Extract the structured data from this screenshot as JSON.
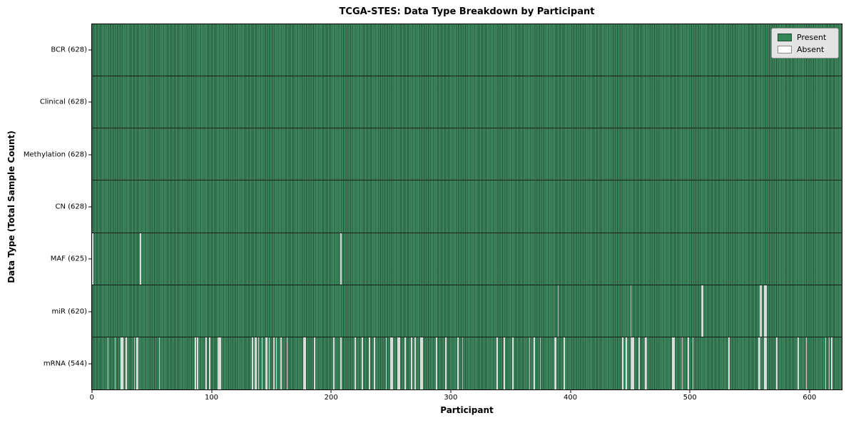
{
  "chart_data": {
    "type": "heatmap",
    "title": "TCGA-STES: Data Type Breakdown by Participant",
    "xlabel": "Participant",
    "ylabel": "Data Type (Total Sample Count)",
    "x_range": [
      -0.5,
      627.5
    ],
    "x_ticks": [
      0,
      100,
      200,
      300,
      400,
      500,
      600
    ],
    "n_participants": 628,
    "grid": false,
    "legend_position": "upper right",
    "legend_items": [
      {
        "label": "Present",
        "color": "#35875a"
      },
      {
        "label": "Absent",
        "color": "#ffffff"
      }
    ],
    "colors": {
      "present": "#35875a",
      "absent": "#ffffff",
      "bar_edge": "#0d1f14"
    },
    "rows": [
      {
        "data_type": "BCR",
        "label": "BCR (628)",
        "present_count": 628,
        "absent_participants": []
      },
      {
        "data_type": "Clinical",
        "label": "Clinical (628)",
        "present_count": 628,
        "absent_participants": []
      },
      {
        "data_type": "Methylation",
        "label": "Methylation (628)",
        "present_count": 628,
        "absent_participants": []
      },
      {
        "data_type": "CN",
        "label": "CN (628)",
        "present_count": 628,
        "absent_participants": []
      },
      {
        "data_type": "MAF",
        "label": "MAF (625)",
        "present_count": 625,
        "absent_participants": [
          0,
          40,
          208
        ]
      },
      {
        "data_type": "miR",
        "label": "miR (620)",
        "present_count": 620,
        "absent_participants": [
          390,
          451,
          510,
          511,
          559,
          560,
          563,
          564
        ]
      },
      {
        "data_type": "mRNA",
        "label": "mRNA (544)",
        "present_count": 544,
        "absent_participants": [
          13,
          19,
          24,
          25,
          28,
          35,
          37,
          38,
          56,
          86,
          88,
          95,
          98,
          105,
          106,
          107,
          134,
          136,
          137,
          139,
          142,
          145,
          146,
          148,
          152,
          154,
          158,
          163,
          177,
          178,
          186,
          202,
          208,
          220,
          226,
          232,
          236,
          246,
          250,
          251,
          256,
          257,
          262,
          267,
          270,
          275,
          276,
          288,
          296,
          306,
          310,
          339,
          345,
          352,
          366,
          370,
          375,
          387,
          388,
          395,
          444,
          447,
          451,
          452,
          453,
          458,
          463,
          464,
          486,
          487,
          494,
          499,
          503,
          533,
          558,
          559,
          563,
          564,
          573,
          591,
          598,
          614,
          617,
          619
        ]
      }
    ]
  }
}
